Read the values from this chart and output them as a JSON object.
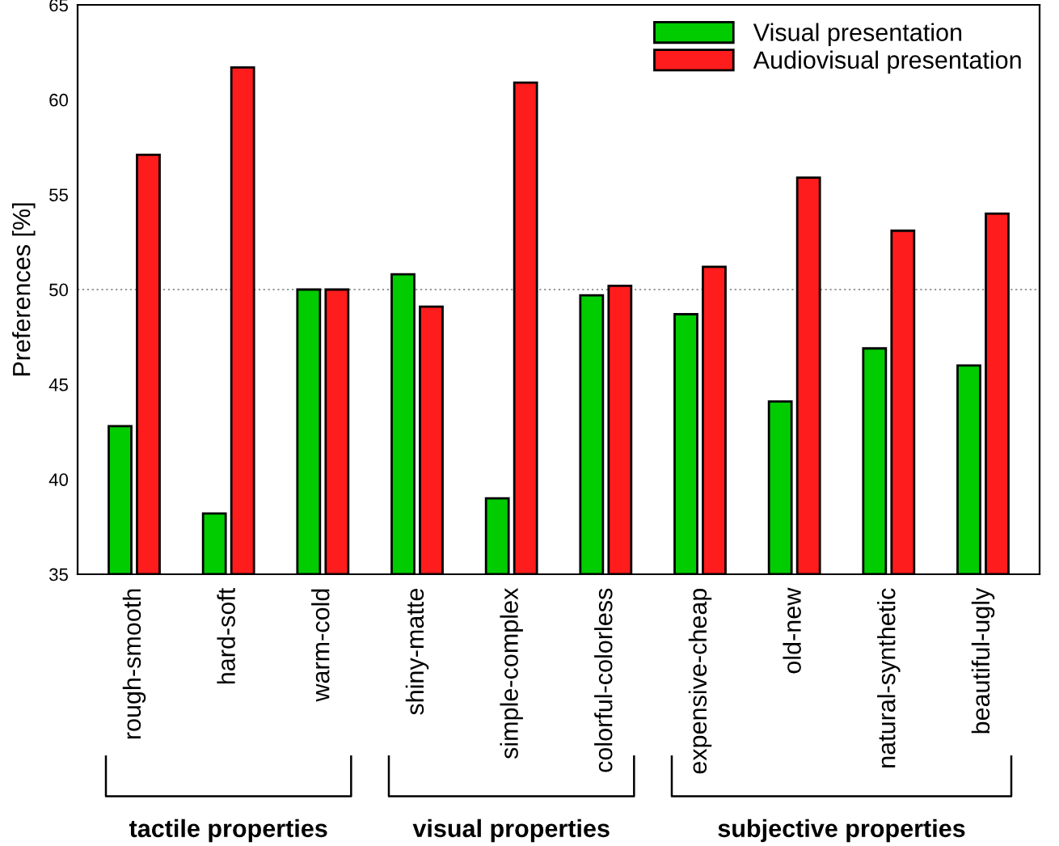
{
  "chart_data": {
    "type": "bar",
    "ylabel": "Preferences [%]",
    "categories": [
      "rough-smooth",
      "hard-soft",
      "warm-cold",
      "shiny-matte",
      "simple-complex",
      "colorful-colorless",
      "expensive-cheap",
      "old-new",
      "natural-synthetic",
      "beautiful-ugly"
    ],
    "series": [
      {
        "name": "Visual presentation",
        "color": "#00cc00",
        "values": [
          42.8,
          38.2,
          50.0,
          50.8,
          39.0,
          49.7,
          48.7,
          44.1,
          46.9,
          46.0
        ]
      },
      {
        "name": "Audiovisual presentation",
        "color": "#ff1c1c",
        "values": [
          57.1,
          61.7,
          50.0,
          49.1,
          60.9,
          50.2,
          51.2,
          55.9,
          53.1,
          54.0
        ]
      }
    ],
    "ylim": [
      35,
      65
    ],
    "yticks": [
      35,
      40,
      45,
      50,
      55,
      60,
      65
    ],
    "ref_lines": [
      {
        "axis": "y",
        "value": 50,
        "color": "#999999",
        "line_style": "dotted"
      }
    ],
    "annotations": [
      "tactile properties",
      "visual properties",
      "subjective properties"
    ],
    "legend": "top right",
    "grid": false
  }
}
